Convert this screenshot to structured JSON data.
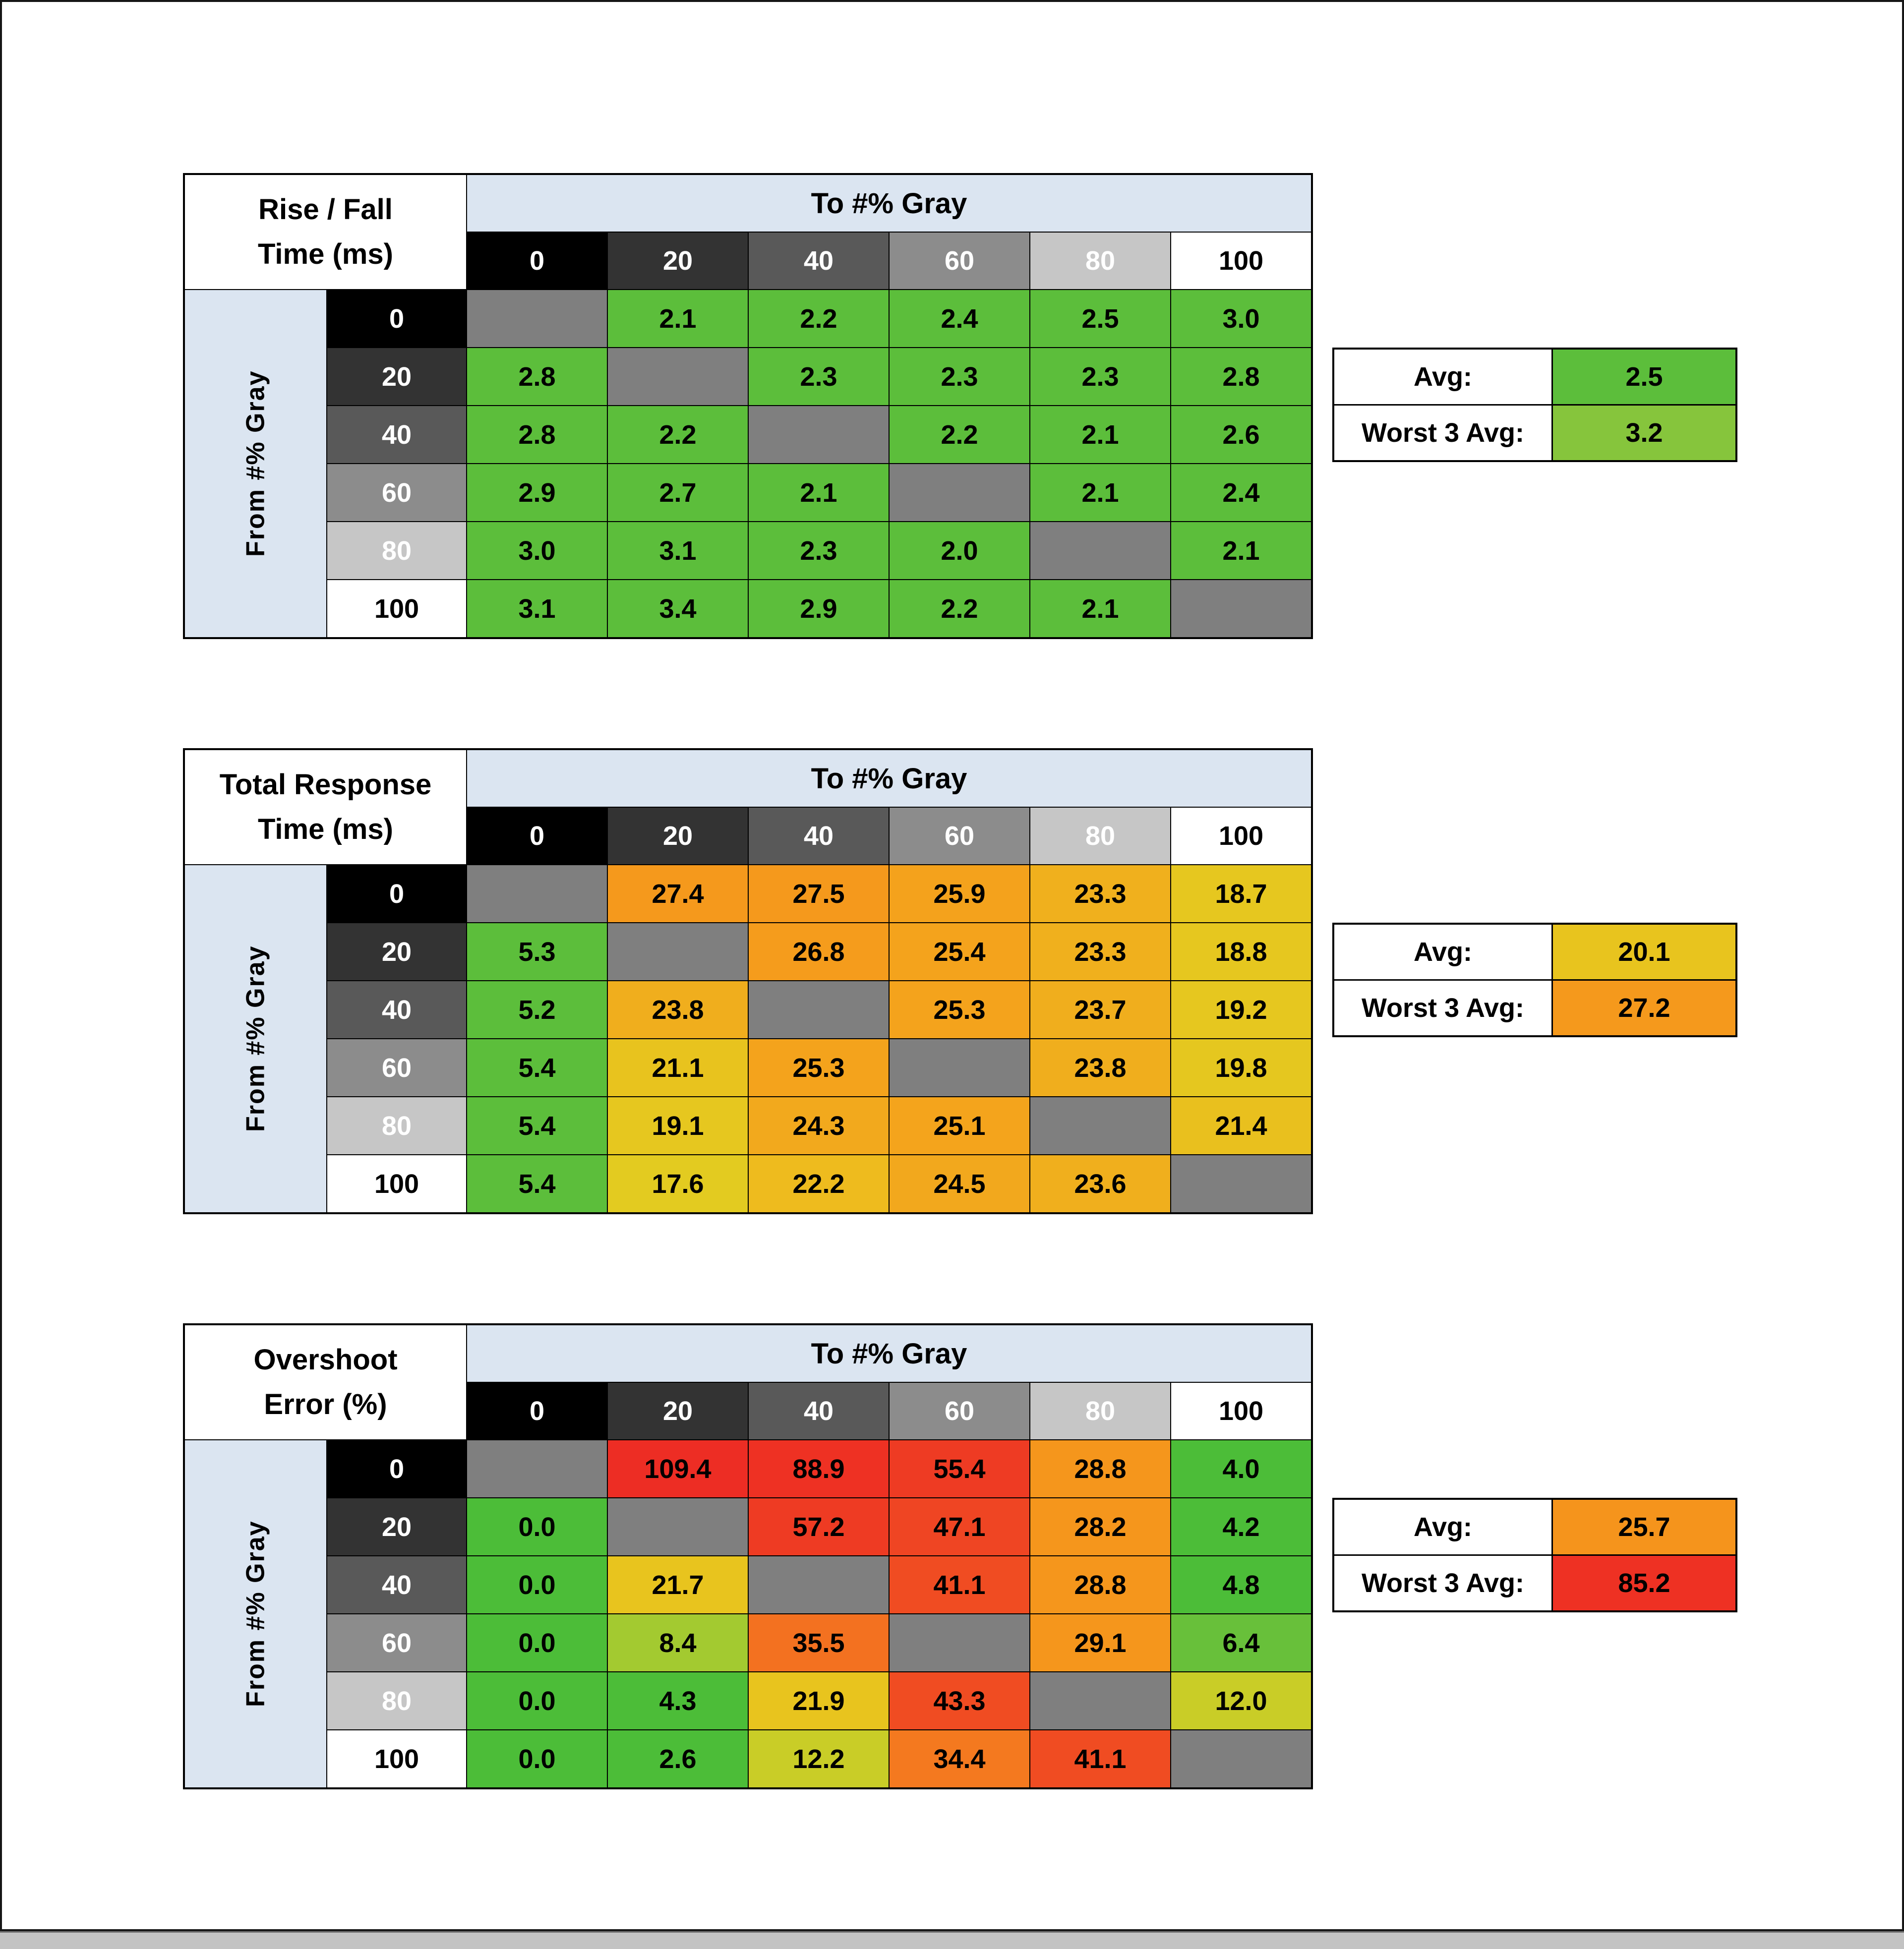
{
  "window": {
    "background": "#ffffff",
    "frame_border": "#161616",
    "bottom_bar_color": "#c3c3c3"
  },
  "style": {
    "header_blue": "#dbe5f1",
    "diagonal_gray": "#7f7f7f",
    "grid_line": "#000000"
  },
  "gray_shades": [
    {
      "label": "0",
      "bg": "#000000",
      "fg": "#ffffff"
    },
    {
      "label": "20",
      "bg": "#333333",
      "fg": "#ffffff"
    },
    {
      "label": "40",
      "bg": "#595959",
      "fg": "#ffffff"
    },
    {
      "label": "60",
      "bg": "#8c8c8c",
      "fg": "#ffffff"
    },
    {
      "label": "80",
      "bg": "#c6c6c6",
      "fg": "#ffffff"
    },
    {
      "label": "100",
      "bg": "#ffffff",
      "fg": "#000000"
    }
  ],
  "chart_data": [
    {
      "type": "heatmap",
      "title": "Rise / Fall Time (ms)",
      "title_line1": "Rise / Fall",
      "title_line2": "Time (ms)",
      "to_label": "To #% Gray",
      "from_label": "From #% Gray",
      "levels": [
        "0",
        "20",
        "40",
        "60",
        "80",
        "100"
      ],
      "values": [
        [
          null,
          2.1,
          2.2,
          2.4,
          2.5,
          3.0
        ],
        [
          2.8,
          null,
          2.3,
          2.3,
          2.3,
          2.8
        ],
        [
          2.8,
          2.2,
          null,
          2.2,
          2.1,
          2.6
        ],
        [
          2.9,
          2.7,
          2.1,
          null,
          2.1,
          2.4
        ],
        [
          3.0,
          3.1,
          2.3,
          2.0,
          null,
          2.1
        ],
        [
          3.1,
          3.4,
          2.9,
          2.2,
          2.1,
          null
        ]
      ],
      "cell_colors": [
        [
          null,
          "#5cbe3b",
          "#5cbe3b",
          "#5cbe3b",
          "#5cbe3b",
          "#5cbe3b"
        ],
        [
          "#5cbe3b",
          null,
          "#5cbe3b",
          "#5cbe3b",
          "#5cbe3b",
          "#5cbe3b"
        ],
        [
          "#5cbe3b",
          "#5cbe3b",
          null,
          "#5cbe3b",
          "#5cbe3b",
          "#5cbe3b"
        ],
        [
          "#5cbe3b",
          "#5cbe3b",
          "#5cbe3b",
          null,
          "#5cbe3b",
          "#5cbe3b"
        ],
        [
          "#5cbe3b",
          "#5cbe3b",
          "#5cbe3b",
          "#5cbe3b",
          null,
          "#5cbe3b"
        ],
        [
          "#5cbe3b",
          "#5cbe3b",
          "#5cbe3b",
          "#5cbe3b",
          "#5cbe3b",
          null
        ]
      ],
      "summary": {
        "avg_label": "Avg:",
        "avg_value": 2.5,
        "avg_color": "#5cbe3b",
        "worst_label": "Worst 3 Avg:",
        "worst_value": 3.2,
        "worst_color": "#86c53c"
      }
    },
    {
      "type": "heatmap",
      "title": "Total Response Time (ms)",
      "title_line1": "Total Response",
      "title_line2": "Time (ms)",
      "to_label": "To #% Gray",
      "from_label": "From #% Gray",
      "levels": [
        "0",
        "20",
        "40",
        "60",
        "80",
        "100"
      ],
      "values": [
        [
          null,
          27.4,
          27.5,
          25.9,
          23.3,
          18.7
        ],
        [
          5.3,
          null,
          26.8,
          25.4,
          23.3,
          18.8
        ],
        [
          5.2,
          23.8,
          null,
          25.3,
          23.7,
          19.2
        ],
        [
          5.4,
          21.1,
          25.3,
          null,
          23.8,
          19.8
        ],
        [
          5.4,
          19.1,
          24.3,
          25.1,
          null,
          21.4
        ],
        [
          5.4,
          17.6,
          22.2,
          24.5,
          23.6,
          null
        ]
      ],
      "cell_colors": [
        [
          null,
          "#f5991c",
          "#f5991c",
          "#f4a21c",
          "#f0b01d",
          "#e6c71f"
        ],
        [
          "#5cbe3b",
          null,
          "#f59c1c",
          "#f4a31c",
          "#f0b01d",
          "#e6c71f"
        ],
        [
          "#5cbe3b",
          "#f0ae1d",
          null,
          "#f4a31c",
          "#f0ae1d",
          "#e6c71f"
        ],
        [
          "#5cbe3b",
          "#e8c31e",
          "#f4a31c",
          null,
          "#f0ae1d",
          "#e5c71f"
        ],
        [
          "#5cbe3b",
          "#e6c71f",
          "#f2a91d",
          "#f4a41c",
          null,
          "#e9c01e"
        ],
        [
          "#5cbe3b",
          "#e3cb20",
          "#eebb1e",
          "#f2a81d",
          "#f0af1d",
          null
        ]
      ],
      "summary": {
        "avg_label": "Avg:",
        "avg_value": 20.1,
        "avg_color": "#e8c41e",
        "worst_label": "Worst 3 Avg:",
        "worst_value": 27.2,
        "worst_color": "#f5991c"
      }
    },
    {
      "type": "heatmap",
      "title": "Overshoot Error (%)",
      "title_line1": "Overshoot",
      "title_line2": "Error (%)",
      "to_label": "To #% Gray",
      "from_label": "From #% Gray",
      "levels": [
        "0",
        "20",
        "40",
        "60",
        "80",
        "100"
      ],
      "values": [
        [
          null,
          109.4,
          88.9,
          55.4,
          28.8,
          4.0
        ],
        [
          0.0,
          null,
          57.2,
          47.1,
          28.2,
          4.2
        ],
        [
          0.0,
          21.7,
          null,
          41.1,
          28.8,
          4.8
        ],
        [
          0.0,
          8.4,
          35.5,
          null,
          29.1,
          6.4
        ],
        [
          0.0,
          4.3,
          21.9,
          43.3,
          null,
          12.0
        ],
        [
          0.0,
          2.6,
          12.2,
          34.4,
          41.1,
          null
        ]
      ],
      "cell_colors": [
        [
          null,
          "#ed2d24",
          "#ee3123",
          "#ee3b23",
          "#f5961c",
          "#4cbd38"
        ],
        [
          "#4cbd38",
          null,
          "#ee3b23",
          "#ef4523",
          "#f5961c",
          "#4cbd38"
        ],
        [
          "#4cbd38",
          "#e8c41e",
          null,
          "#f04c22",
          "#f5961c",
          "#4cbd38"
        ],
        [
          "#4cbd38",
          "#a3ca30",
          "#f37120",
          null,
          "#f5961c",
          "#68c03a"
        ],
        [
          "#4cbd38",
          "#4cbd38",
          "#e8c41e",
          "#f04c22",
          null,
          "#c9cd27"
        ],
        [
          "#4cbd38",
          "#4cbd38",
          "#c9cd27",
          "#f4791f",
          "#f04c22",
          null
        ]
      ],
      "summary": {
        "avg_label": "Avg:",
        "avg_value": 25.7,
        "avg_color": "#f5941c",
        "worst_label": "Worst 3 Avg:",
        "worst_value": 85.2,
        "worst_color": "#ee3123"
      }
    }
  ]
}
